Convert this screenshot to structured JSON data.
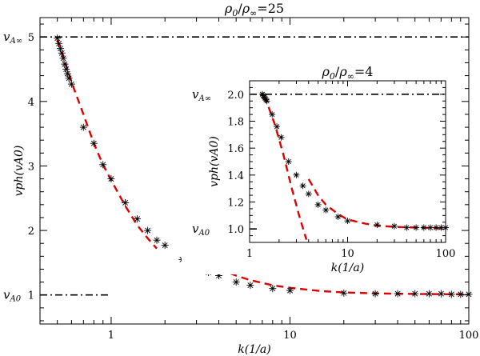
{
  "chart_data": [
    {
      "type": "scatter",
      "panel": "main",
      "title": "ρ0/ρ∞=25",
      "title_parts": {
        "rho": "ρ",
        "sub0": "0",
        "slash": "/",
        "subinf": "∞",
        "eq": "=25"
      },
      "xlabel": "k(1/a)",
      "ylabel": "vph(vA0)",
      "xscale": "log",
      "xlim": [
        0.4,
        100
      ],
      "ylim": [
        0.55,
        5.3
      ],
      "xticks": [
        {
          "value": 1,
          "label": "1"
        },
        {
          "value": 10,
          "label": "10"
        },
        {
          "value": 100,
          "label": "100"
        }
      ],
      "yticks": [
        {
          "value": 1,
          "label": "1"
        },
        {
          "value": 2,
          "label": "2"
        },
        {
          "value": 3,
          "label": "3"
        },
        {
          "value": 4,
          "label": "4"
        },
        {
          "value": 5,
          "label": "5"
        }
      ],
      "annotations": [
        {
          "name": "vAinf-label",
          "text": "v",
          "sub": "A∞",
          "y": 5
        },
        {
          "name": "vA0-label",
          "text": "v",
          "sub": "A0",
          "y": 1
        }
      ],
      "reference_lines": [
        {
          "name": "vAinf-line",
          "y": 5,
          "x_from": 0.4,
          "x_to": 100,
          "style": "dash-dot"
        },
        {
          "name": "vA0-line",
          "y": 1,
          "x_from": 0.4,
          "x_to": 1.0,
          "style": "dash-dot"
        }
      ],
      "series": [
        {
          "name": "numerical",
          "marker": "asterisk",
          "x": [
            0.5,
            0.51,
            0.52,
            0.53,
            0.54,
            0.55,
            0.56,
            0.57,
            0.58,
            0.6,
            0.7,
            0.8,
            0.9,
            1.0,
            1.2,
            1.4,
            1.6,
            1.8,
            2.0,
            2.5,
            3.0,
            3.5,
            4.0,
            5.0,
            6.0,
            8.0,
            10,
            20,
            30,
            40,
            50,
            60,
            70,
            80,
            90,
            100
          ],
          "y": [
            4.98,
            4.9,
            4.82,
            4.75,
            4.67,
            4.58,
            4.5,
            4.43,
            4.36,
            4.27,
            3.6,
            3.35,
            3.02,
            2.8,
            2.43,
            2.18,
            2.0,
            1.85,
            1.77,
            1.55,
            1.43,
            1.35,
            1.3,
            1.2,
            1.15,
            1.1,
            1.07,
            1.03,
            1.02,
            1.02,
            1.02,
            1.02,
            1.02,
            1.01,
            1.01,
            1.01
          ]
        },
        {
          "name": "fit-low-k",
          "line": "dashed",
          "color": "#dd0000",
          "x": [
            0.5,
            0.55,
            0.6,
            0.7,
            0.8,
            0.9,
            1.0,
            1.2,
            1.4,
            1.6,
            1.8
          ],
          "y": [
            4.95,
            4.63,
            4.3,
            3.8,
            3.35,
            3.02,
            2.78,
            2.38,
            2.08,
            1.88,
            1.72
          ]
        },
        {
          "name": "fit-high-k",
          "line": "dashed",
          "color": "#dd0000",
          "x": [
            4.0,
            5.0,
            6.0,
            8.0,
            10,
            15,
            20,
            30,
            50,
            100
          ],
          "y": [
            1.4,
            1.3,
            1.23,
            1.15,
            1.11,
            1.06,
            1.04,
            1.025,
            1.015,
            1.01
          ]
        }
      ]
    },
    {
      "type": "scatter",
      "panel": "inset",
      "title": "ρ0/ρ∞=4",
      "title_parts": {
        "rho": "ρ",
        "sub0": "0",
        "slash": "/",
        "subinf": "∞",
        "eq": "=4"
      },
      "xlabel": "k(1/a)",
      "ylabel": "vph(vA0)",
      "xscale": "log",
      "xlim": [
        1,
        100
      ],
      "ylim": [
        0.9,
        2.1
      ],
      "xticks": [
        {
          "value": 1,
          "label": "1"
        },
        {
          "value": 10,
          "label": "10"
        },
        {
          "value": 100,
          "label": "100"
        }
      ],
      "yticks": [
        {
          "value": 1.0,
          "label": "1.0"
        },
        {
          "value": 1.2,
          "label": "1.2"
        },
        {
          "value": 1.4,
          "label": "1.4"
        },
        {
          "value": 1.6,
          "label": "1.6"
        },
        {
          "value": 1.8,
          "label": "1.8"
        },
        {
          "value": 2.0,
          "label": "2.0"
        }
      ],
      "annotations": [
        {
          "name": "inset-vAinf-label",
          "text": "v",
          "sub": "A∞",
          "y": 2.0
        },
        {
          "name": "inset-vA0-label",
          "text": "v",
          "sub": "A0",
          "y": 1.0
        }
      ],
      "reference_lines": [
        {
          "name": "inset-vAinf-line",
          "y": 2.0,
          "x_from": 1,
          "x_to": 100,
          "style": "dash-dot"
        },
        {
          "name": "inset-vA0-line",
          "y": 1.0,
          "x_from": 1,
          "x_to": 1.25,
          "style": "dash-dot"
        }
      ],
      "series": [
        {
          "name": "numerical",
          "marker": "asterisk",
          "x": [
            1.35,
            1.38,
            1.41,
            1.44,
            1.47,
            1.5,
            1.7,
            1.9,
            2.1,
            2.5,
            3.0,
            3.5,
            4.0,
            5.0,
            6.0,
            8.0,
            10,
            20,
            30,
            40,
            50,
            60,
            70,
            80,
            90,
            100
          ],
          "y": [
            2.0,
            1.99,
            1.98,
            1.97,
            1.96,
            1.95,
            1.85,
            1.76,
            1.68,
            1.5,
            1.4,
            1.32,
            1.26,
            1.18,
            1.14,
            1.09,
            1.06,
            1.03,
            1.02,
            1.01,
            1.01,
            1.01,
            1.01,
            1.01,
            1.01,
            1.01
          ]
        },
        {
          "name": "fit-low-k",
          "line": "dashed",
          "color": "#dd0000",
          "x": [
            1.35,
            1.5,
            1.8,
            2.2,
            2.7,
            3.2,
            3.8
          ],
          "y": [
            1.98,
            1.94,
            1.78,
            1.56,
            1.3,
            1.1,
            0.92
          ]
        },
        {
          "name": "fit-high-k",
          "line": "dashed",
          "color": "#dd0000",
          "x": [
            4.0,
            5.0,
            6.0,
            8.0,
            10,
            15,
            20,
            30,
            50,
            100
          ],
          "y": [
            1.37,
            1.25,
            1.18,
            1.11,
            1.07,
            1.04,
            1.025,
            1.015,
            1.01,
            1.005
          ]
        }
      ]
    }
  ]
}
